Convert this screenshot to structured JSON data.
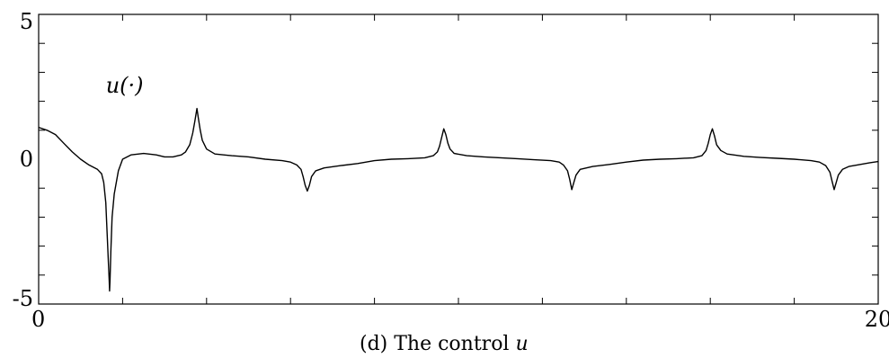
{
  "chart_data": {
    "type": "line",
    "title": "",
    "caption": "(d) The control ",
    "caption_var": "u",
    "xlabel": "",
    "ylabel": "",
    "xlim": [
      0,
      20
    ],
    "ylim": [
      -5,
      5
    ],
    "x_tick_labels": [
      {
        "value": 0,
        "label": "0"
      },
      {
        "value": 20,
        "label": "20"
      }
    ],
    "y_tick_labels": [
      {
        "value": 5,
        "label": "5"
      },
      {
        "value": 0,
        "label": "0"
      },
      {
        "value": -5,
        "label": "-5"
      }
    ],
    "x_minor_ticks": [
      2,
      4,
      6,
      8,
      10,
      12,
      14,
      16,
      18
    ],
    "y_minor_ticks": [
      4,
      3,
      2,
      1,
      -1,
      -2,
      -3,
      -4
    ],
    "grid": false,
    "series_label": "u(·)",
    "series_label_anchor": {
      "x": 1.6,
      "y": 2.3
    },
    "series": [
      {
        "name": "",
        "color": "#000000",
        "points": [
          [
            0.0,
            1.1
          ],
          [
            0.2,
            1.0
          ],
          [
            0.4,
            0.85
          ],
          [
            0.6,
            0.55
          ],
          [
            0.8,
            0.25
          ],
          [
            1.0,
            0.0
          ],
          [
            1.2,
            -0.2
          ],
          [
            1.4,
            -0.35
          ],
          [
            1.5,
            -0.5
          ],
          [
            1.55,
            -0.8
          ],
          [
            1.6,
            -1.5
          ],
          [
            1.63,
            -2.5
          ],
          [
            1.66,
            -3.5
          ],
          [
            1.68,
            -4.2
          ],
          [
            1.69,
            -4.55
          ],
          [
            1.7,
            -4.2
          ],
          [
            1.72,
            -3.2
          ],
          [
            1.75,
            -2.0
          ],
          [
            1.8,
            -1.2
          ],
          [
            1.9,
            -0.4
          ],
          [
            2.0,
            0.0
          ],
          [
            2.2,
            0.15
          ],
          [
            2.5,
            0.2
          ],
          [
            2.8,
            0.15
          ],
          [
            3.0,
            0.08
          ],
          [
            3.2,
            0.08
          ],
          [
            3.4,
            0.15
          ],
          [
            3.5,
            0.25
          ],
          [
            3.6,
            0.5
          ],
          [
            3.67,
            0.9
          ],
          [
            3.72,
            1.3
          ],
          [
            3.77,
            1.75
          ],
          [
            3.8,
            1.45
          ],
          [
            3.85,
            1.0
          ],
          [
            3.9,
            0.65
          ],
          [
            4.0,
            0.35
          ],
          [
            4.2,
            0.18
          ],
          [
            4.6,
            0.12
          ],
          [
            5.0,
            0.08
          ],
          [
            5.4,
            0.0
          ],
          [
            5.8,
            -0.05
          ],
          [
            6.0,
            -0.1
          ],
          [
            6.15,
            -0.2
          ],
          [
            6.25,
            -0.35
          ],
          [
            6.3,
            -0.6
          ],
          [
            6.35,
            -0.9
          ],
          [
            6.4,
            -1.1
          ],
          [
            6.45,
            -0.9
          ],
          [
            6.5,
            -0.6
          ],
          [
            6.6,
            -0.4
          ],
          [
            6.8,
            -0.3
          ],
          [
            7.2,
            -0.22
          ],
          [
            7.6,
            -0.15
          ],
          [
            8.0,
            -0.05
          ],
          [
            8.4,
            0.0
          ],
          [
            8.8,
            0.02
          ],
          [
            9.2,
            0.05
          ],
          [
            9.4,
            0.12
          ],
          [
            9.5,
            0.25
          ],
          [
            9.55,
            0.45
          ],
          [
            9.6,
            0.75
          ],
          [
            9.65,
            1.05
          ],
          [
            9.7,
            0.85
          ],
          [
            9.75,
            0.55
          ],
          [
            9.8,
            0.35
          ],
          [
            9.9,
            0.2
          ],
          [
            10.2,
            0.12
          ],
          [
            10.6,
            0.08
          ],
          [
            11.0,
            0.05
          ],
          [
            11.4,
            0.02
          ],
          [
            11.8,
            -0.02
          ],
          [
            12.2,
            -0.05
          ],
          [
            12.4,
            -0.1
          ],
          [
            12.5,
            -0.2
          ],
          [
            12.6,
            -0.4
          ],
          [
            12.65,
            -0.7
          ],
          [
            12.7,
            -1.05
          ],
          [
            12.75,
            -0.8
          ],
          [
            12.8,
            -0.55
          ],
          [
            12.9,
            -0.35
          ],
          [
            13.2,
            -0.25
          ],
          [
            13.6,
            -0.18
          ],
          [
            14.0,
            -0.1
          ],
          [
            14.4,
            -0.03
          ],
          [
            14.8,
            0.0
          ],
          [
            15.2,
            0.02
          ],
          [
            15.6,
            0.05
          ],
          [
            15.8,
            0.12
          ],
          [
            15.9,
            0.3
          ],
          [
            15.95,
            0.55
          ],
          [
            16.0,
            0.85
          ],
          [
            16.05,
            1.05
          ],
          [
            16.1,
            0.8
          ],
          [
            16.15,
            0.5
          ],
          [
            16.25,
            0.3
          ],
          [
            16.4,
            0.18
          ],
          [
            16.8,
            0.1
          ],
          [
            17.2,
            0.06
          ],
          [
            17.6,
            0.03
          ],
          [
            18.0,
            0.0
          ],
          [
            18.4,
            -0.05
          ],
          [
            18.6,
            -0.1
          ],
          [
            18.75,
            -0.22
          ],
          [
            18.85,
            -0.45
          ],
          [
            18.9,
            -0.75
          ],
          [
            18.95,
            -1.05
          ],
          [
            19.0,
            -0.8
          ],
          [
            19.05,
            -0.55
          ],
          [
            19.15,
            -0.35
          ],
          [
            19.3,
            -0.25
          ],
          [
            19.5,
            -0.2
          ],
          [
            19.8,
            -0.12
          ],
          [
            20.0,
            -0.08
          ]
        ]
      }
    ]
  }
}
